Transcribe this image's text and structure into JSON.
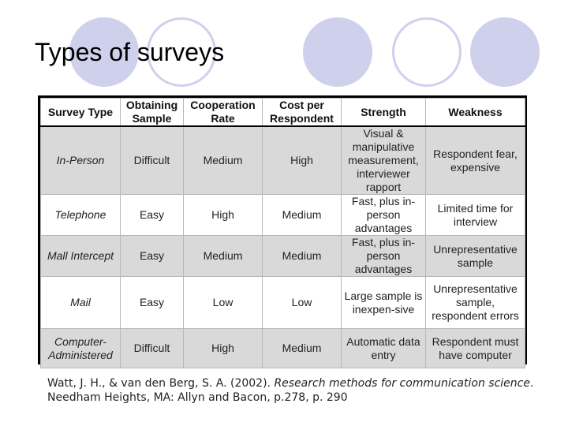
{
  "slide": {
    "title": "Types of surveys",
    "decor_color": "#cfd0ec"
  },
  "table": {
    "headers": [
      "Survey Type",
      "Obtaining Sample",
      "Cooperation Rate",
      "Cost per Respondent",
      "Strength",
      "Weakness"
    ],
    "rows": [
      [
        "In-Person",
        "Difficult",
        "Medium",
        "High",
        "Visual & manipulative measurement, interviewer rapport",
        "Respondent fear, expensive"
      ],
      [
        "Telephone",
        "Easy",
        "High",
        "Medium",
        "Fast, plus in-person advantages",
        "Limited time for interview"
      ],
      [
        "Mall Intercept",
        "Easy",
        "Medium",
        "Medium",
        "Fast, plus in-person advantages",
        "Unrepresentative sample"
      ],
      [
        "Mail",
        "Easy",
        "Low",
        "Low",
        "Large sample is inexpen-sive",
        "Unrepresentative sample, respondent errors"
      ],
      [
        "Computer-Administered",
        "Difficult",
        "High",
        "Medium",
        "Automatic data entry",
        "Respondent must have computer"
      ]
    ]
  },
  "citation": {
    "prefix": "Watt, J. H., & van den Berg, S. A. (2002). ",
    "book_title": "Research methods for communication science",
    "suffix": ". Needham Heights, MA: Allyn and Bacon, p.278, p. 290"
  }
}
